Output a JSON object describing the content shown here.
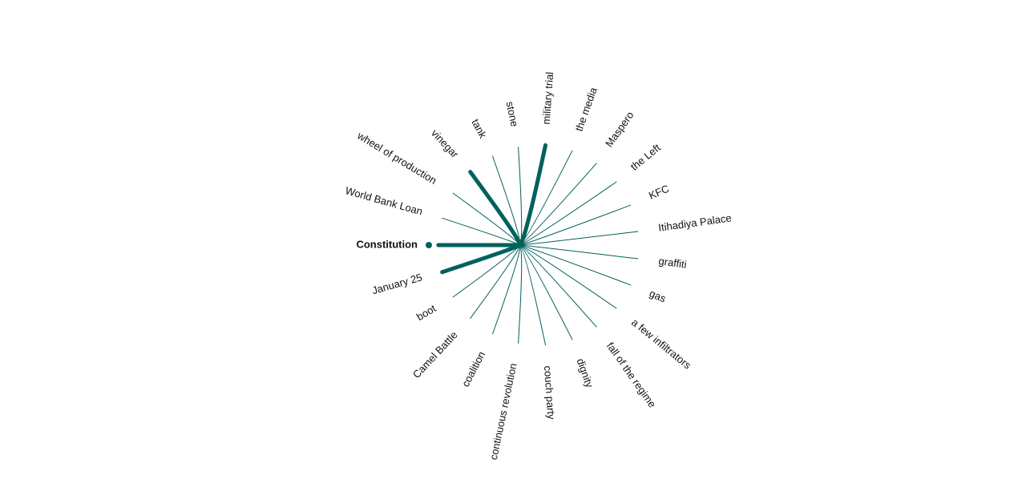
{
  "nodes": [
    {
      "label": "Constitution",
      "selected": true
    },
    {
      "label": "World Bank Loan"
    },
    {
      "label": "wheel of production"
    },
    {
      "label": "vinegar",
      "highlighted": true
    },
    {
      "label": "tank"
    },
    {
      "label": "stone"
    },
    {
      "label": "military trial",
      "highlighted": true
    },
    {
      "label": "the media"
    },
    {
      "label": "Maspero"
    },
    {
      "label": "the Left"
    },
    {
      "label": "KFC"
    },
    {
      "label": "Itihadiya Palace"
    },
    {
      "label": "graffiti"
    },
    {
      "label": "gas"
    },
    {
      "label": "a few infiltrators"
    },
    {
      "label": "fall of the regime"
    },
    {
      "label": "dignity"
    },
    {
      "label": "couch party"
    },
    {
      "label": "continuous revolution"
    },
    {
      "label": "coalition"
    },
    {
      "label": "Camel Battle"
    },
    {
      "label": "boot"
    },
    {
      "label": "January 25",
      "highlighted": true
    }
  ]
}
